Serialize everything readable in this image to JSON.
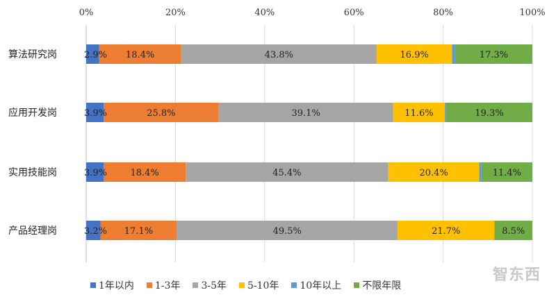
{
  "chart_data": {
    "type": "stacked-bar-horizontal",
    "title": "",
    "categories": [
      "算法研究岗",
      "应用开发岗",
      "实用技能岗",
      "产品经理岗"
    ],
    "x_ticks": [
      "0%",
      "20%",
      "40%",
      "60%",
      "80%",
      "100%"
    ],
    "xlim": [
      0,
      100
    ],
    "series": [
      {
        "name": "1年以内",
        "color": "#4472C4",
        "values": [
          2.9,
          3.9,
          3.9,
          3.2
        ],
        "labels": [
          "2.9%",
          "3.9%",
          "3.9%",
          "3.2%"
        ]
      },
      {
        "name": "1-3年",
        "color": "#ED7D31",
        "values": [
          18.4,
          25.8,
          18.4,
          17.1
        ],
        "labels": [
          "18.4%",
          "25.8%",
          "18.4%",
          "17.1%"
        ]
      },
      {
        "name": "3-5年",
        "color": "#A5A5A5",
        "values": [
          43.8,
          39.1,
          45.4,
          49.5
        ],
        "labels": [
          "43.8%",
          "39.1%",
          "45.4%",
          "49.5%"
        ]
      },
      {
        "name": "5-10年",
        "color": "#FFC000",
        "values": [
          16.9,
          11.6,
          20.4,
          21.7
        ],
        "labels": [
          "16.9%",
          "11.6%",
          "20.4%",
          "21.7%"
        ]
      },
      {
        "name": "10年以上",
        "color": "#5B9BD5",
        "values": [
          0.7,
          0.3,
          0.5,
          0.0
        ],
        "labels": [
          "",
          "",
          "",
          ""
        ]
      },
      {
        "name": "不限年限",
        "color": "#70AD47",
        "values": [
          17.3,
          19.3,
          11.4,
          8.5
        ],
        "labels": [
          "17.3%",
          "19.3%",
          "11.4%",
          "8.5%"
        ]
      }
    ],
    "legend_position": "bottom"
  },
  "watermark": "智东西"
}
